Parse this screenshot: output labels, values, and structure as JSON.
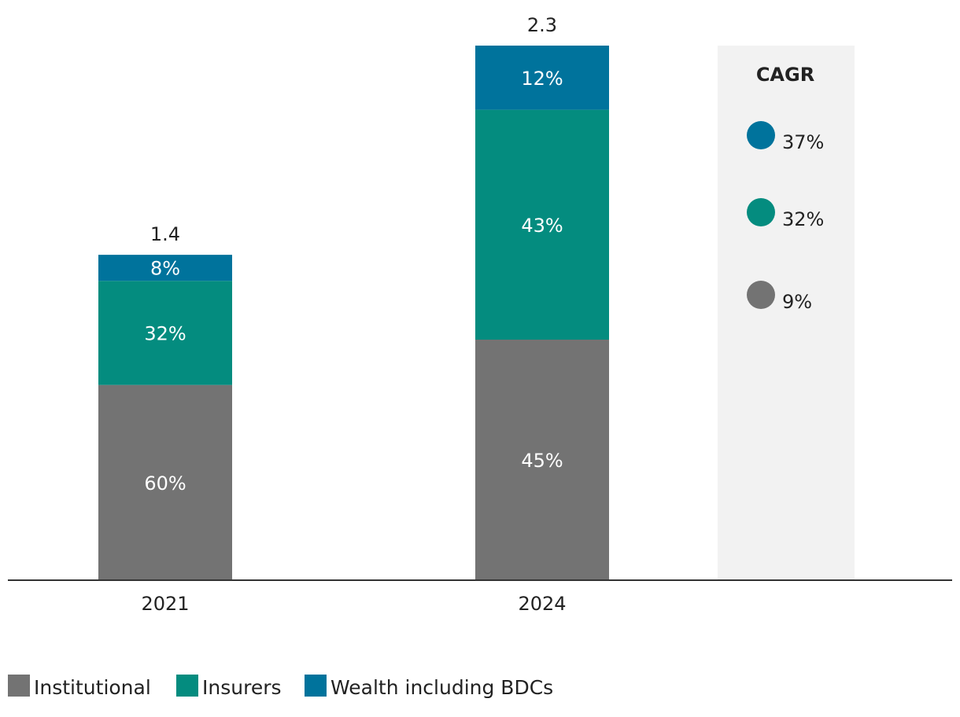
{
  "chart_data": {
    "type": "bar",
    "stacked": true,
    "categories": [
      "2021",
      "2024"
    ],
    "totals": [
      1.4,
      2.3
    ],
    "total_labels": [
      "1.4",
      "2.3"
    ],
    "series": [
      {
        "name": "Institutional",
        "color": "#737373",
        "values": [
          0.84,
          1.035
        ],
        "share_labels": [
          "60%",
          "45%"
        ]
      },
      {
        "name": "Insurers",
        "color": "#048c7f",
        "values": [
          0.448,
          0.989
        ],
        "share_labels": [
          "32%",
          "43%"
        ]
      },
      {
        "name": "Wealth including BDCs",
        "color": "#00739c",
        "values": [
          0.112,
          0.276
        ],
        "share_labels": [
          "8%",
          "12%"
        ]
      }
    ],
    "ylim": [
      0,
      2.3
    ],
    "cagr": {
      "title": "CAGR",
      "panel_color": "#f2f2f2",
      "items": [
        {
          "series": "Wealth including BDCs",
          "value": "37%",
          "color": "#00739c"
        },
        {
          "series": "Insurers",
          "value": "32%",
          "color": "#048c7f"
        },
        {
          "series": "Institutional",
          "value": "9%",
          "color": "#737373"
        }
      ]
    },
    "legend": {
      "position": "bottom-left",
      "entries": [
        "Institutional",
        "Insurers",
        "Wealth including BDCs"
      ]
    }
  }
}
